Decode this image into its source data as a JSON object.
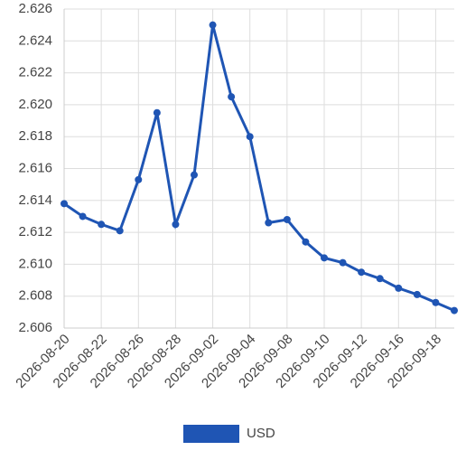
{
  "chart_data": {
    "type": "line",
    "categories": [
      "2026-08-20",
      null,
      "2026-08-22",
      null,
      "2026-08-26",
      null,
      "2026-08-28",
      null,
      "2026-09-02",
      null,
      "2026-09-04",
      null,
      "2026-09-08",
      null,
      "2026-09-10",
      null,
      "2026-09-12",
      null,
      "2026-09-16",
      null,
      "2026-09-18",
      null
    ],
    "series": [
      {
        "name": "USD",
        "color": "#1f55b4",
        "values": [
          2.6138,
          2.613,
          2.6125,
          2.6121,
          2.6153,
          2.6195,
          2.6125,
          2.6156,
          2.625,
          2.6205,
          2.618,
          2.6126,
          2.6128,
          2.6114,
          2.6104,
          2.6101,
          2.6095,
          2.6091,
          2.6085,
          2.6081,
          2.6076,
          2.6071
        ]
      }
    ],
    "ylim": [
      2.606,
      2.626
    ],
    "yticks": [
      2.606,
      2.608,
      {
        "value": 2.61,
        "label": "2.610"
      },
      2.612,
      2.614,
      2.616,
      2.618,
      {
        "value": 2.62,
        "label": "2.620"
      },
      2.622,
      2.624,
      2.626
    ],
    "grid": true,
    "legend": "bottom"
  }
}
